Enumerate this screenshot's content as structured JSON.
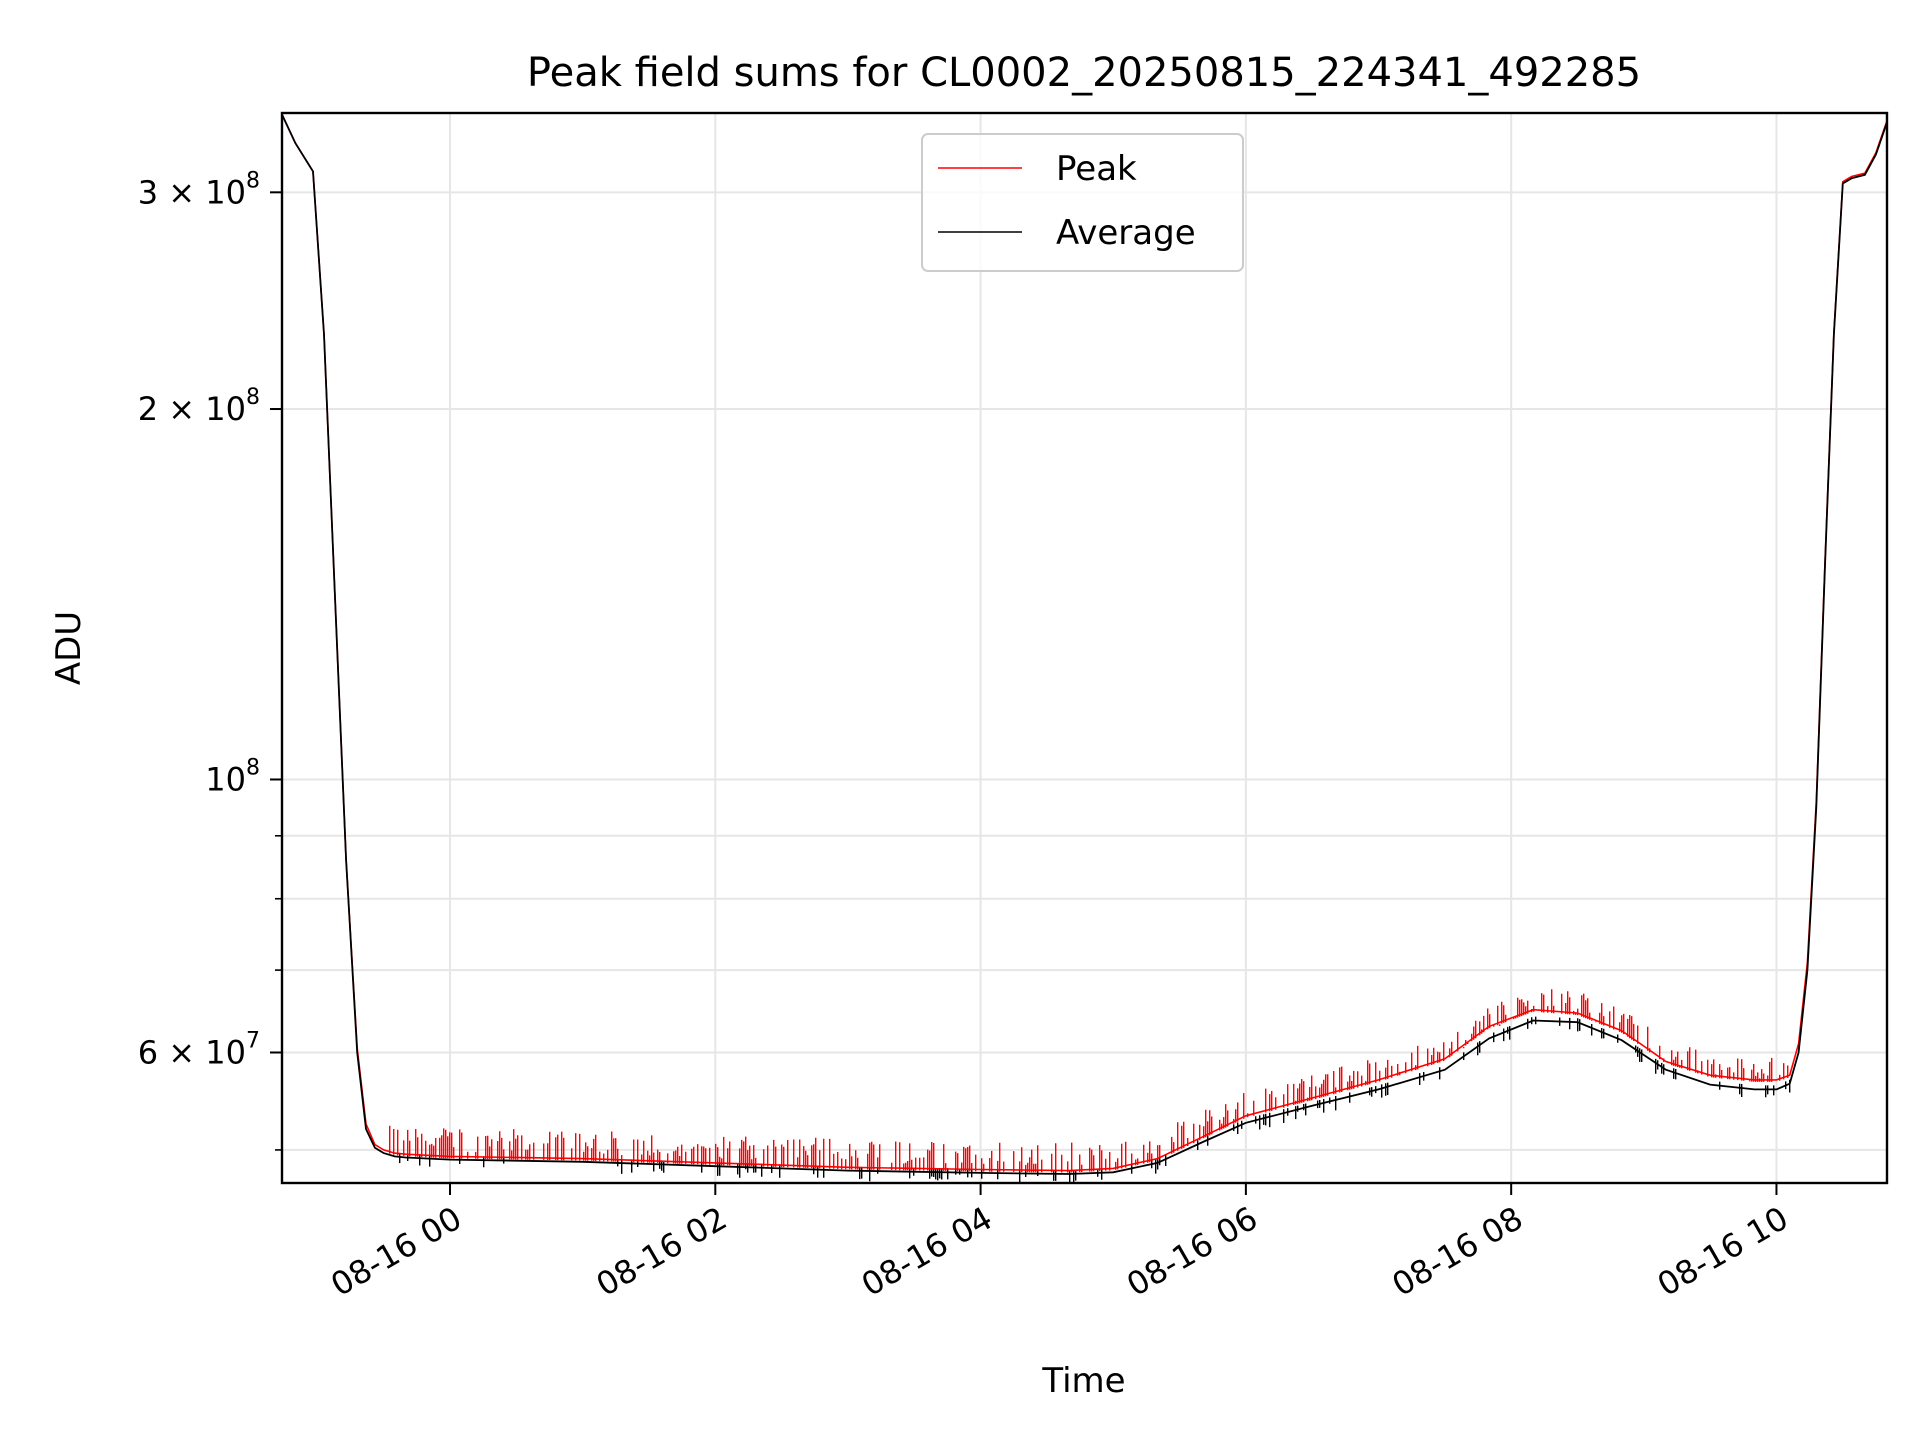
{
  "chart_data": {
    "type": "line",
    "title": "Peak field sums for CL0002_20250815_224341_492285",
    "xlabel": "Time",
    "ylabel": "ADU",
    "y_scale": "log",
    "xlim": [
      "2025-08-15 22:44",
      "2025-08-16 10:50"
    ],
    "ylim": [
      47000000,
      348000000
    ],
    "grid": true,
    "legend_position": "top-center",
    "x_ticks": [
      {
        "value": "2025-08-16 00:00",
        "label": "08-16 00"
      },
      {
        "value": "2025-08-16 02:00",
        "label": "08-16 02"
      },
      {
        "value": "2025-08-16 04:00",
        "label": "08-16 04"
      },
      {
        "value": "2025-08-16 06:00",
        "label": "08-16 06"
      },
      {
        "value": "2025-08-16 08:00",
        "label": "08-16 08"
      },
      {
        "value": "2025-08-16 10:00",
        "label": "08-16 10"
      }
    ],
    "y_ticks_major": [
      {
        "value": 100000000,
        "mantissa": "",
        "base": "10",
        "exp": "8"
      },
      {
        "value": 200000000,
        "mantissa": "2",
        "base": "10",
        "exp": "8"
      },
      {
        "value": 300000000,
        "mantissa": "3",
        "base": "10",
        "exp": "8"
      },
      {
        "value": 60000000,
        "mantissa": "6",
        "base": "10",
        "exp": "7"
      }
    ],
    "y_ticks_minor": [
      50000000,
      70000000,
      80000000,
      90000000
    ],
    "series": [
      {
        "name": "Average",
        "color": "#000000",
        "x": [
          "2025-08-15 22:44",
          "2025-08-15 22:50",
          "2025-08-15 22:58",
          "2025-08-15 23:03",
          "2025-08-15 23:08",
          "2025-08-15 23:13",
          "2025-08-15 23:18",
          "2025-08-15 23:22",
          "2025-08-15 23:26",
          "2025-08-15 23:30",
          "2025-08-15 23:35",
          "2025-08-15 23:40",
          "2025-08-16 00:00",
          "2025-08-16 01:00",
          "2025-08-16 02:00",
          "2025-08-16 03:00",
          "2025-08-16 04:00",
          "2025-08-16 04:40",
          "2025-08-16 05:00",
          "2025-08-16 05:20",
          "2025-08-16 05:40",
          "2025-08-16 06:00",
          "2025-08-16 06:30",
          "2025-08-16 07:00",
          "2025-08-16 07:30",
          "2025-08-16 07:50",
          "2025-08-16 08:10",
          "2025-08-16 08:30",
          "2025-08-16 08:50",
          "2025-08-16 09:10",
          "2025-08-16 09:30",
          "2025-08-16 09:50",
          "2025-08-16 10:00",
          "2025-08-16 10:06",
          "2025-08-16 10:10",
          "2025-08-16 10:14",
          "2025-08-16 10:18",
          "2025-08-16 10:22",
          "2025-08-16 10:26",
          "2025-08-16 10:30",
          "2025-08-16 10:34",
          "2025-08-16 10:40",
          "2025-08-16 10:45",
          "2025-08-16 10:50"
        ],
        "y": [
          347000000,
          329000000,
          312000000,
          230000000,
          140000000,
          86000000,
          60000000,
          52000000,
          50200000,
          49700000,
          49400000,
          49300000,
          49100000,
          48900000,
          48500000,
          48100000,
          47900000,
          47800000,
          47950000,
          48800000,
          50700000,
          52600000,
          54300000,
          56000000,
          58100000,
          61600000,
          63700000,
          63500000,
          61400000,
          58100000,
          56500000,
          56000000,
          56000000,
          56600000,
          60000000,
          70000000,
          95000000,
          150000000,
          230000000,
          305000000,
          308000000,
          310000000,
          322000000,
          342000000
        ]
      },
      {
        "name": "Peak",
        "color": "#ff0000",
        "x": [
          "2025-08-15 22:44",
          "2025-08-15 22:50",
          "2025-08-15 22:58",
          "2025-08-15 23:03",
          "2025-08-15 23:08",
          "2025-08-15 23:13",
          "2025-08-15 23:18",
          "2025-08-15 23:22",
          "2025-08-15 23:26",
          "2025-08-15 23:30",
          "2025-08-15 23:35",
          "2025-08-15 23:40",
          "2025-08-16 00:00",
          "2025-08-16 01:00",
          "2025-08-16 02:00",
          "2025-08-16 03:00",
          "2025-08-16 04:00",
          "2025-08-16 04:40",
          "2025-08-16 05:00",
          "2025-08-16 05:20",
          "2025-08-16 05:40",
          "2025-08-16 06:00",
          "2025-08-16 06:30",
          "2025-08-16 07:00",
          "2025-08-16 07:30",
          "2025-08-16 07:50",
          "2025-08-16 08:10",
          "2025-08-16 08:30",
          "2025-08-16 08:50",
          "2025-08-16 09:10",
          "2025-08-16 09:30",
          "2025-08-16 09:50",
          "2025-08-16 10:00",
          "2025-08-16 10:06",
          "2025-08-16 10:10",
          "2025-08-16 10:14",
          "2025-08-16 10:18",
          "2025-08-16 10:22",
          "2025-08-16 10:26",
          "2025-08-16 10:30",
          "2025-08-16 10:34",
          "2025-08-16 10:40",
          "2025-08-16 10:45",
          "2025-08-16 10:50"
        ],
        "y": [
          347000000,
          329000000,
          312000000,
          230000000,
          140000000,
          86000000,
          60500000,
          52500000,
          50500000,
          50000000,
          49700000,
          49600000,
          49400000,
          49200000,
          48800000,
          48400000,
          48200000,
          48100000,
          48300000,
          49200000,
          51200000,
          53300000,
          55100000,
          57000000,
          59300000,
          63000000,
          65000000,
          64600000,
          62500000,
          59000000,
          57500000,
          57000000,
          57000000,
          57500000,
          61000000,
          71000000,
          96000000,
          151000000,
          231000000,
          306000000,
          309000000,
          311000000,
          323000000,
          343000000
        ]
      }
    ]
  }
}
